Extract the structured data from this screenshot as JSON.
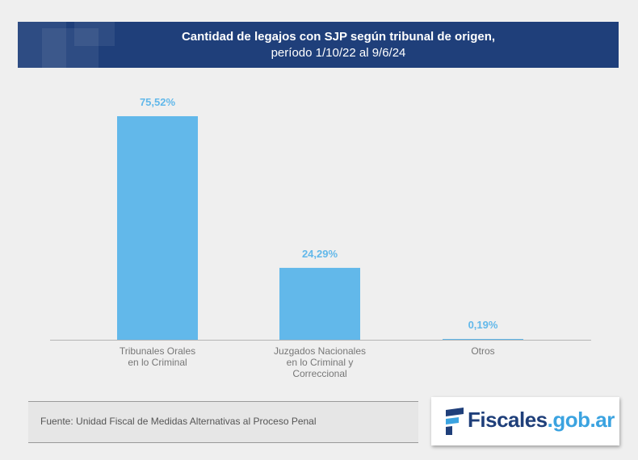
{
  "header": {
    "title": "Cantidad de legajos con SJP según tribunal de origen,",
    "subtitle": "período 1/10/22 al 9/6/24"
  },
  "chart_data": {
    "type": "bar",
    "title": "Cantidad de legajos con SJP según tribunal de origen,",
    "subtitle": "período 1/10/22 al 9/6/24",
    "categories": [
      [
        "Tribunales Orales",
        "en lo Criminal"
      ],
      [
        "Juzgados Nacionales",
        "en lo Criminal y",
        "Correccional"
      ],
      [
        "Otros"
      ]
    ],
    "values": [
      75.52,
      24.29,
      0.19
    ],
    "value_labels": [
      "75,52%",
      "24,29%",
      "0,19%"
    ],
    "unit": "%",
    "xlabel": "",
    "ylabel": "",
    "ylim": [
      0,
      100
    ],
    "grid": false,
    "bar_color": "#62b8ea",
    "label_color": "#62b8ea"
  },
  "footer": {
    "source": "Fuente: Unidad Fiscal de Medidas Alternativas al Proceso Penal"
  },
  "logo": {
    "name": "Fiscales",
    "domain": ".gob.ar",
    "colors": {
      "primary": "#1f3f7a",
      "accent": "#3ba3e0"
    }
  }
}
